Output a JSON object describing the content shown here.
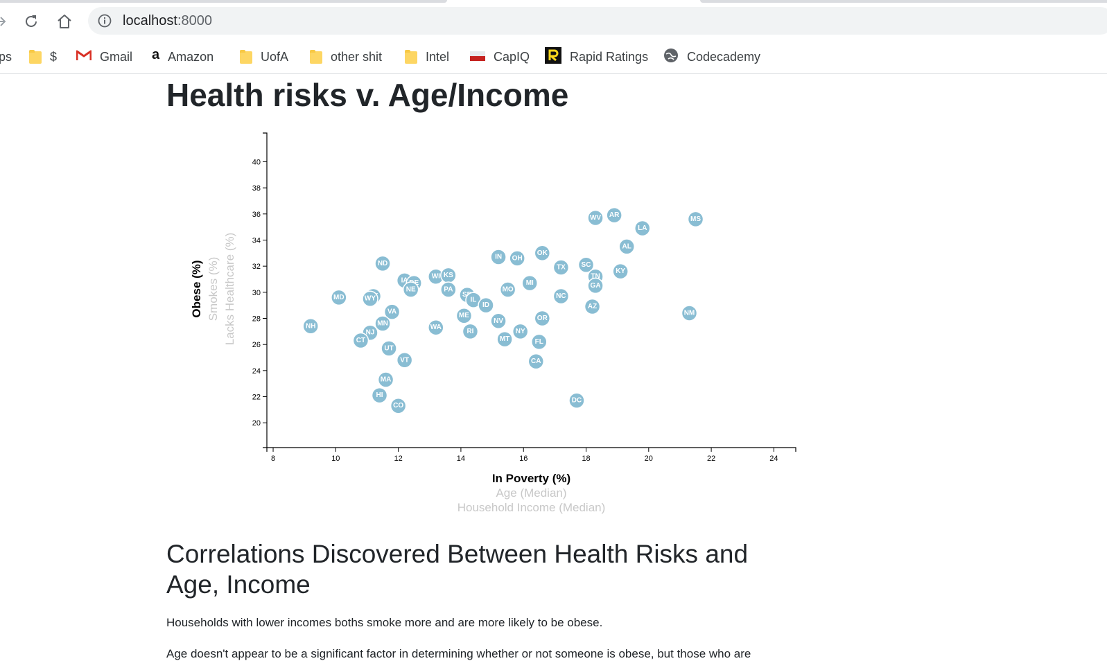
{
  "browser": {
    "url_host": "localhost",
    "url_port": ":8000",
    "bookmarks": [
      {
        "label": "ps",
        "icon": "partial-bookmark"
      },
      {
        "label": "$",
        "icon": "folder-icon"
      },
      {
        "label": "Gmail",
        "icon": "gmail-icon"
      },
      {
        "label": "Amazon",
        "icon": "amazon-icon"
      },
      {
        "label": "UofA",
        "icon": "folder-icon"
      },
      {
        "label": "other shit",
        "icon": "folder-icon"
      },
      {
        "label": "Intel",
        "icon": "folder-icon"
      },
      {
        "label": "CapIQ",
        "icon": "capiq-icon"
      },
      {
        "label": "Rapid Ratings",
        "icon": "rapid-ratings-icon"
      },
      {
        "label": "Codecademy",
        "icon": "codecademy-icon"
      }
    ]
  },
  "page": {
    "title": "Health risks v. Age/Income",
    "section_heading": "Correlations Discovered Between Health Risks and Age, Income",
    "paragraphs": [
      "Households with lower incomes boths smoke more and are more likely to be obese.",
      "Age doesn't appear to be a significant factor in determining whether or not someone is obese, but those who are"
    ]
  },
  "chart_data": {
    "type": "scatter",
    "x_axis_labels": [
      {
        "text": "In Poverty (%)",
        "active": true
      },
      {
        "text": "Age (Median)",
        "active": false
      },
      {
        "text": "Household Income (Median)",
        "active": false
      }
    ],
    "y_axis_labels": [
      {
        "text": "Obese (%)",
        "active": true
      },
      {
        "text": "Smokes (%)",
        "active": false
      },
      {
        "text": "Lacks Healthcare (%)",
        "active": false
      }
    ],
    "xlim": [
      7.8,
      24.7
    ],
    "ylim": [
      18.1,
      42.2
    ],
    "x_ticks": [
      8,
      10,
      12,
      14,
      16,
      18,
      20,
      22,
      24
    ],
    "y_ticks": [
      20,
      22,
      24,
      26,
      28,
      30,
      32,
      34,
      36,
      38,
      40
    ],
    "point_color": "#89bdd3",
    "points": [
      {
        "abbr": "WV",
        "x": 18.3,
        "y": 35.7
      },
      {
        "abbr": "AR",
        "x": 18.9,
        "y": 35.9
      },
      {
        "abbr": "LA",
        "x": 19.8,
        "y": 34.9
      },
      {
        "abbr": "MS",
        "x": 21.5,
        "y": 35.6
      },
      {
        "abbr": "AL",
        "x": 19.3,
        "y": 33.5
      },
      {
        "abbr": "OK",
        "x": 16.6,
        "y": 33.0
      },
      {
        "abbr": "IN",
        "x": 15.2,
        "y": 32.7
      },
      {
        "abbr": "OH",
        "x": 15.8,
        "y": 32.6
      },
      {
        "abbr": "ND",
        "x": 11.5,
        "y": 32.2
      },
      {
        "abbr": "TX",
        "x": 17.2,
        "y": 31.9
      },
      {
        "abbr": "SC",
        "x": 18.0,
        "y": 32.1
      },
      {
        "abbr": "KY",
        "x": 19.1,
        "y": 31.6
      },
      {
        "abbr": "TN",
        "x": 18.3,
        "y": 31.2
      },
      {
        "abbr": "GA",
        "x": 18.3,
        "y": 30.5
      },
      {
        "abbr": "MI",
        "x": 16.2,
        "y": 30.7
      },
      {
        "abbr": "WI",
        "x": 13.2,
        "y": 31.2
      },
      {
        "abbr": "KS",
        "x": 13.6,
        "y": 31.3
      },
      {
        "abbr": "IA",
        "x": 12.2,
        "y": 30.9
      },
      {
        "abbr": "DE",
        "x": 12.5,
        "y": 30.7
      },
      {
        "abbr": "NE",
        "x": 12.4,
        "y": 30.2
      },
      {
        "abbr": "PA",
        "x": 13.6,
        "y": 30.2
      },
      {
        "abbr": "MO",
        "x": 15.5,
        "y": 30.2
      },
      {
        "abbr": "SD",
        "x": 14.2,
        "y": 29.8
      },
      {
        "abbr": "IL",
        "x": 14.4,
        "y": 29.4
      },
      {
        "abbr": "ID",
        "x": 14.8,
        "y": 29.0
      },
      {
        "abbr": "NC",
        "x": 17.2,
        "y": 29.7
      },
      {
        "abbr": "AZ",
        "x": 18.2,
        "y": 28.9
      },
      {
        "abbr": "MD",
        "x": 10.1,
        "y": 29.6
      },
      {
        "abbr": "AK",
        "x": 11.2,
        "y": 29.7
      },
      {
        "abbr": "WY",
        "x": 11.1,
        "y": 29.5
      },
      {
        "abbr": "VA",
        "x": 11.8,
        "y": 28.5
      },
      {
        "abbr": "ME",
        "x": 14.1,
        "y": 28.2
      },
      {
        "abbr": "OR",
        "x": 16.6,
        "y": 28.0
      },
      {
        "abbr": "NM",
        "x": 21.3,
        "y": 28.4
      },
      {
        "abbr": "NV",
        "x": 15.2,
        "y": 27.8
      },
      {
        "abbr": "MN",
        "x": 11.5,
        "y": 27.6
      },
      {
        "abbr": "NH",
        "x": 9.2,
        "y": 27.4
      },
      {
        "abbr": "WA",
        "x": 13.2,
        "y": 27.3
      },
      {
        "abbr": "RI",
        "x": 14.3,
        "y": 27.0
      },
      {
        "abbr": "NY",
        "x": 15.9,
        "y": 27.0
      },
      {
        "abbr": "NJ",
        "x": 11.1,
        "y": 26.9
      },
      {
        "abbr": "MT",
        "x": 15.4,
        "y": 26.4
      },
      {
        "abbr": "FL",
        "x": 16.5,
        "y": 26.2
      },
      {
        "abbr": "CT",
        "x": 10.8,
        "y": 26.3
      },
      {
        "abbr": "UT",
        "x": 11.7,
        "y": 25.7
      },
      {
        "abbr": "VT",
        "x": 12.2,
        "y": 24.8
      },
      {
        "abbr": "CA",
        "x": 16.4,
        "y": 24.7
      },
      {
        "abbr": "MA",
        "x": 11.6,
        "y": 23.3
      },
      {
        "abbr": "HI",
        "x": 11.4,
        "y": 22.1
      },
      {
        "abbr": "CO",
        "x": 12.0,
        "y": 21.3
      },
      {
        "abbr": "DC",
        "x": 17.7,
        "y": 21.7
      }
    ]
  }
}
